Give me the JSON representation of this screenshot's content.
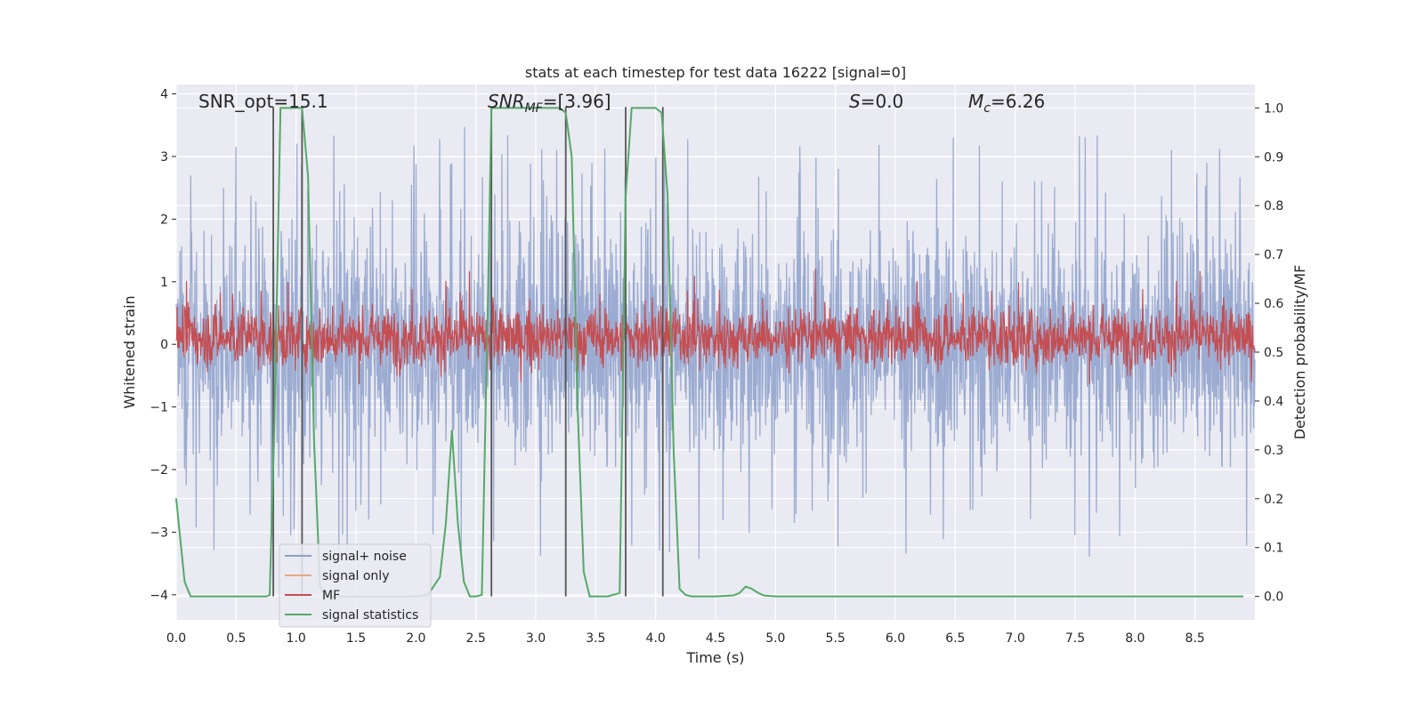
{
  "chart_data": {
    "type": "line",
    "title": "stats at each timestep for test data 16222 [signal=0]",
    "xlabel": "Time (s)",
    "ylabel_left": "Whitened strain",
    "ylabel_right": "Detection probability/MF",
    "xlim": [
      0.0,
      9.0
    ],
    "ylim_left": [
      -4.4,
      4.15
    ],
    "ylim_right": [
      -0.048,
      1.048
    ],
    "x_ticks": [
      "0.0",
      "0.5",
      "1.0",
      "1.5",
      "2.0",
      "2.5",
      "3.0",
      "3.5",
      "4.0",
      "4.5",
      "5.0",
      "5.5",
      "6.0",
      "6.5",
      "7.0",
      "7.5",
      "8.0",
      "8.5"
    ],
    "y_left_ticks": [
      "4",
      "3",
      "2",
      "1",
      "0",
      "−1",
      "−2",
      "−3",
      "−4"
    ],
    "y_right_ticks": [
      "1.0",
      "0.9",
      "0.8",
      "0.7",
      "0.6",
      "0.5",
      "0.4",
      "0.3",
      "0.2",
      "0.1",
      "0.0"
    ],
    "grid": true,
    "legend_position": "lower-left",
    "annotations": {
      "snr_opt": "SNR_opt=15.1",
      "snr_mf_base": "SNR",
      "snr_mf_sub": "MF",
      "snr_mf_value": "=[3.96]",
      "s_base": "S",
      "s_value": "=0.0",
      "mc_base": "M",
      "mc_sub": "c",
      "mc_value": "=6.26"
    },
    "series": [
      {
        "name": "signal+ noise",
        "color": "#8da0cb",
        "axis": "left",
        "description": "noisy whitened strain, roughly between -2 and 2 with spikes to about ±3.5"
      },
      {
        "name": "signal only",
        "color": "#e8a87c",
        "axis": "left",
        "values": []
      },
      {
        "name": "MF",
        "color": "#c44e52",
        "axis": "right",
        "description": "matched filter output fluctuating around 0.53 on the right axis"
      },
      {
        "name": "signal statistics",
        "color": "#55a868",
        "axis": "right",
        "x": [
          0.0,
          0.07,
          0.12,
          0.18,
          0.3,
          0.5,
          0.75,
          0.78,
          0.82,
          0.87,
          0.9,
          1.0,
          1.05,
          1.1,
          1.15,
          1.2,
          1.25,
          1.3,
          1.4,
          1.6,
          1.8,
          2.0,
          2.1,
          2.2,
          2.25,
          2.3,
          2.35,
          2.4,
          2.45,
          2.5,
          2.55,
          2.6,
          2.63,
          2.67,
          2.75,
          3.2,
          3.25,
          3.3,
          3.35,
          3.4,
          3.45,
          3.5,
          3.6,
          3.7,
          3.75,
          3.8,
          3.85,
          4.0,
          4.05,
          4.1,
          4.15,
          4.2,
          4.25,
          4.3,
          4.5,
          4.65,
          4.7,
          4.75,
          4.8,
          4.85,
          4.9,
          5.0,
          5.5,
          6.0,
          7.0,
          8.0,
          8.9
        ],
        "values": [
          0.2,
          0.03,
          0.0,
          0.0,
          0.0,
          0.0,
          0.0,
          0.003,
          0.36,
          1.0,
          1.0,
          1.0,
          1.0,
          0.86,
          0.32,
          0.02,
          0.0,
          0.0,
          0.0,
          0.0,
          0.0,
          0.0,
          0.003,
          0.04,
          0.15,
          0.34,
          0.15,
          0.03,
          0.0,
          0.0,
          0.003,
          0.6,
          1.0,
          1.0,
          1.0,
          1.0,
          0.99,
          0.9,
          0.38,
          0.05,
          0.0,
          0.0,
          0.0,
          0.007,
          0.82,
          1.0,
          1.0,
          1.0,
          0.99,
          0.82,
          0.3,
          0.015,
          0.003,
          0.0,
          0.0,
          0.002,
          0.007,
          0.02,
          0.016,
          0.008,
          0.002,
          0.0,
          0.0,
          0.0,
          0.0,
          0.0,
          0.0
        ]
      }
    ],
    "vertical_lines_x": [
      0.81,
      1.05,
      2.63,
      3.25,
      3.75,
      4.06
    ],
    "vertical_line_color": "#555555"
  }
}
